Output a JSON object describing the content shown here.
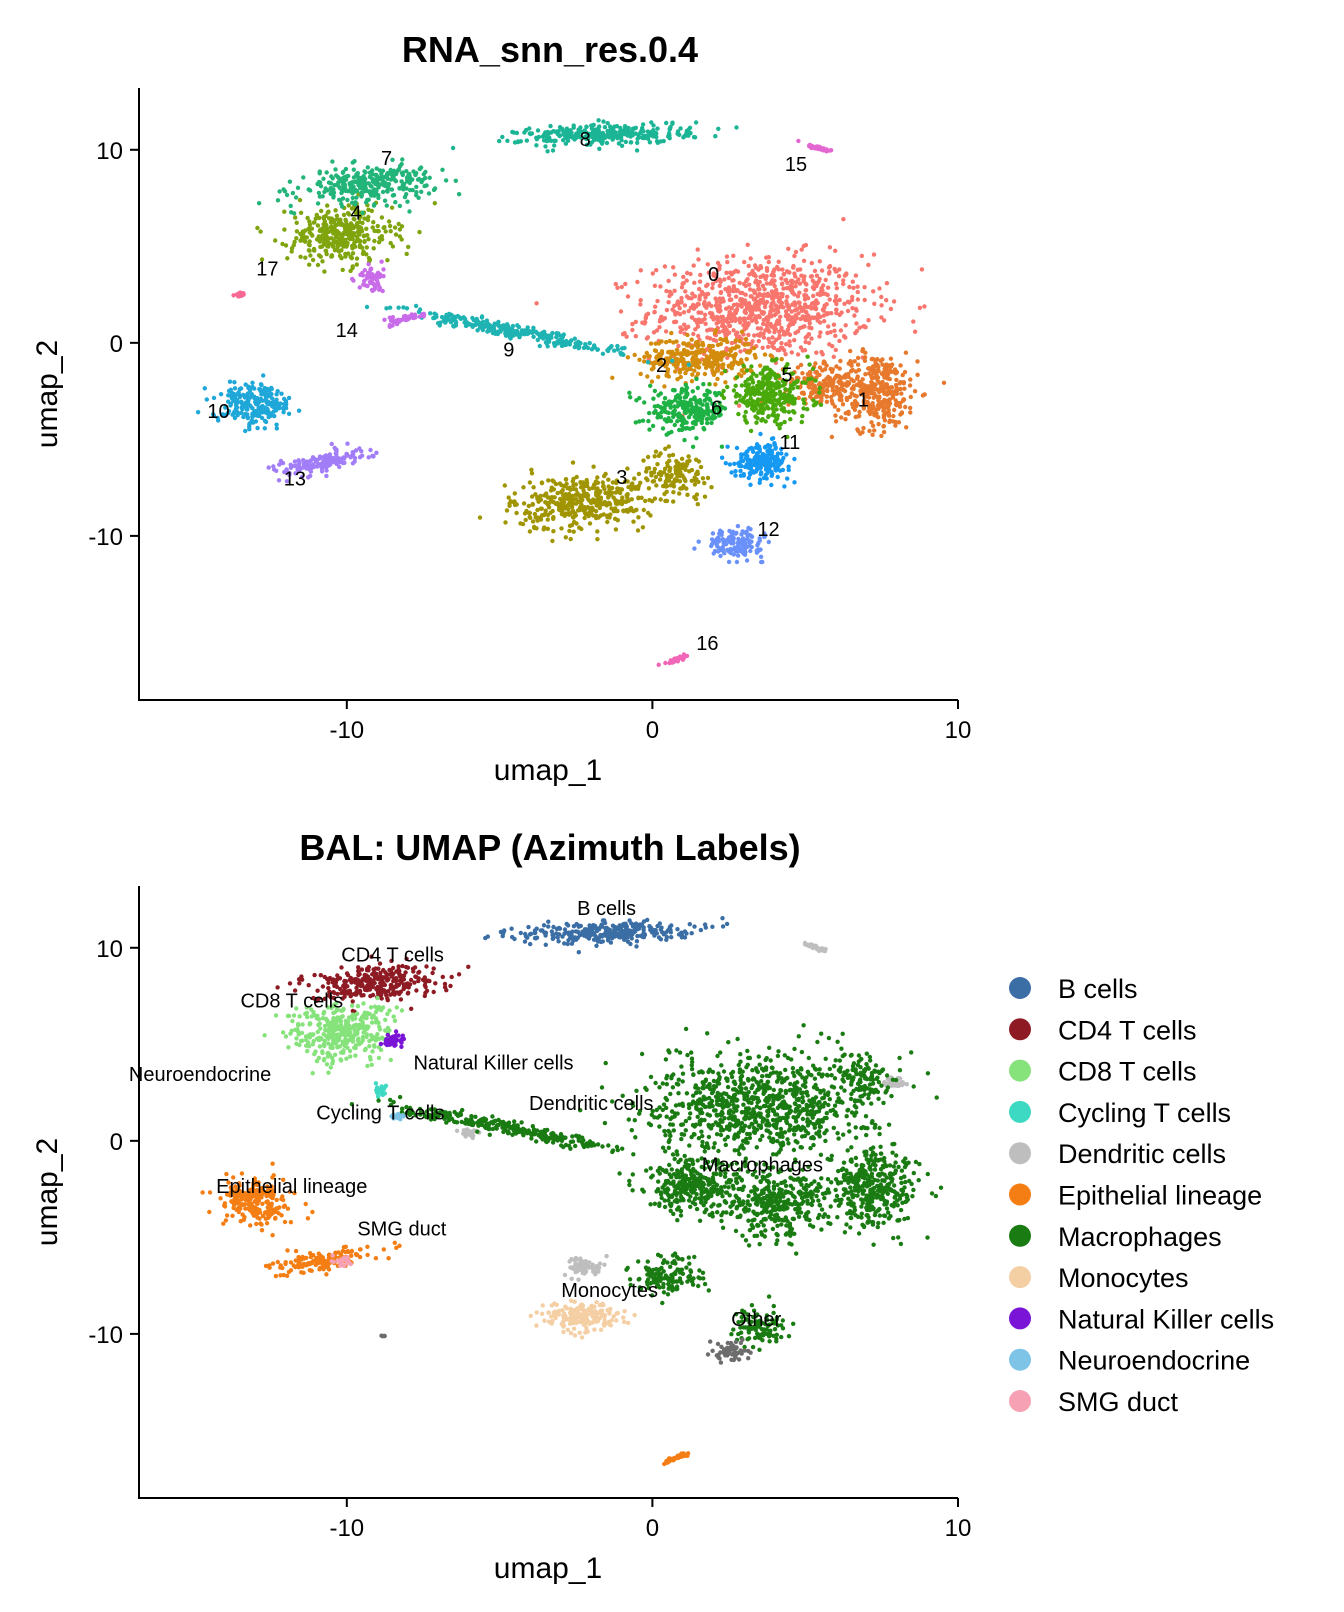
{
  "chart_data": [
    {
      "type": "scatter",
      "title": "RNA_snn_res.0.4",
      "xlabel": "umap_1",
      "ylabel": "umap_2",
      "xlim": [
        -16.8,
        10
      ],
      "ylim": [
        -18.5,
        13.2
      ],
      "xticks": [
        -10,
        0,
        10
      ],
      "yticks": [
        10,
        0,
        -10
      ],
      "legend": "none",
      "clusters": [
        {
          "name": "0",
          "color": "#F8766D",
          "label_xy": [
            2,
            3.2
          ],
          "blobs": [
            [
              3.5,
              1.8,
              3.6,
              2.6,
              0.05,
              900
            ]
          ]
        },
        {
          "name": "1",
          "color": "#E7792D",
          "label_xy": [
            6.9,
            -3.3
          ],
          "blobs": [
            [
              7.3,
              -2.5,
              1.4,
              2.0,
              0,
              350
            ],
            [
              5.5,
              -2.1,
              1.2,
              0.9,
              0,
              150
            ]
          ]
        },
        {
          "name": "2",
          "color": "#D38C0C",
          "label_xy": [
            0.3,
            -1.5
          ],
          "blobs": [
            [
              1.5,
              -0.8,
              1.9,
              1.1,
              0,
              300
            ]
          ]
        },
        {
          "name": "3",
          "color": "#A09500",
          "label_xy": [
            -1,
            -7.3
          ],
          "blobs": [
            [
              -2.3,
              -8.2,
              2.3,
              1.4,
              0.2,
              400
            ],
            [
              0.8,
              -6.8,
              1.2,
              1.2,
              0,
              120
            ]
          ]
        },
        {
          "name": "4",
          "color": "#7FA40D",
          "label_xy": [
            -9.7,
            6.4
          ],
          "blobs": [
            [
              -10.2,
              5.6,
              1.7,
              1.5,
              0,
              350
            ]
          ]
        },
        {
          "name": "5",
          "color": "#49A90A",
          "label_xy": [
            4.4,
            -2
          ],
          "blobs": [
            [
              3.8,
              -2.7,
              1.4,
              1.4,
              0,
              300
            ]
          ]
        },
        {
          "name": "6",
          "color": "#1EB144",
          "label_xy": [
            2.1,
            -3.7
          ],
          "blobs": [
            [
              1.2,
              -3.5,
              1.3,
              1.1,
              0,
              250
            ]
          ]
        },
        {
          "name": "7",
          "color": "#22B479",
          "label_xy": [
            -8.7,
            9.2
          ],
          "blobs": [
            [
              -9.3,
              8.2,
              2.2,
              0.9,
              0.15,
              300
            ]
          ]
        },
        {
          "name": "8",
          "color": "#1BB596",
          "label_xy": [
            -2.2,
            10.2
          ],
          "blobs": [
            [
              -1.5,
              10.8,
              2.8,
              0.55,
              0.06,
              300
            ]
          ]
        },
        {
          "name": "9",
          "color": "#1FB3B3",
          "label_xy": [
            -4.7,
            -0.7
          ],
          "blobs": [
            [
              -4.6,
              0.6,
              3.7,
              0.32,
              -0.3,
              280
            ]
          ]
        },
        {
          "name": "10",
          "color": "#1EA7D8",
          "label_xy": [
            -14.2,
            -3.9
          ],
          "blobs": [
            [
              -13,
              -3.2,
              1.2,
              1.1,
              -0.4,
              220
            ]
          ]
        },
        {
          "name": "11",
          "color": "#1599F2",
          "label_xy": [
            4.5,
            -5.5
          ],
          "blobs": [
            [
              3.6,
              -6.1,
              0.9,
              0.9,
              0,
              200
            ]
          ]
        },
        {
          "name": "12",
          "color": "#6A90FA",
          "label_xy": [
            3.8,
            -10
          ],
          "blobs": [
            [
              2.7,
              -10.4,
              0.9,
              0.7,
              0,
              150
            ]
          ]
        },
        {
          "name": "13",
          "color": "#A27DF8",
          "label_xy": [
            -11.7,
            -7.4
          ],
          "blobs": [
            [
              -10.8,
              -6.2,
              1.6,
              0.5,
              0.3,
              150
            ]
          ]
        },
        {
          "name": "14",
          "color": "#C96CE9",
          "label_xy": [
            -10,
            0.3
          ],
          "blobs": [
            [
              -9.2,
              3.3,
              0.4,
              0.7,
              0,
              60
            ],
            [
              -8,
              1.3,
              0.6,
              0.2,
              0.4,
              50
            ]
          ]
        },
        {
          "name": "15",
          "color": "#E466D0",
          "label_xy": [
            4.7,
            8.9
          ],
          "blobs": [
            [
              5.4,
              10.1,
              0.45,
              0.1,
              -0.5,
              40
            ]
          ]
        },
        {
          "name": "16",
          "color": "#F266B8",
          "label_xy": [
            1.8,
            -15.9
          ],
          "blobs": [
            [
              0.8,
              -16.4,
              0.4,
              0.1,
              0.6,
              40
            ]
          ]
        },
        {
          "name": "17",
          "color": "#F96893",
          "label_xy": [
            -12.6,
            3.5
          ],
          "blobs": [
            [
              -13.5,
              2.5,
              0.15,
              0.15,
              0,
              15
            ]
          ]
        }
      ],
      "labels": [
        "0",
        "1",
        "2",
        "3",
        "4",
        "5",
        "6",
        "7",
        "8",
        "9",
        "10",
        "11",
        "12",
        "13",
        "14",
        "15",
        "16",
        "17"
      ]
    },
    {
      "type": "scatter",
      "title": "BAL: UMAP (Azimuth Labels)",
      "xlabel": "umap_1",
      "ylabel": "umap_2",
      "xlim": [
        -16.8,
        10
      ],
      "ylim": [
        -18.5,
        13.2
      ],
      "xticks": [
        -10,
        0,
        10
      ],
      "yticks": [
        10,
        0,
        -10
      ],
      "legend": "right",
      "clusters": [
        {
          "name": "B cells",
          "color": "#3A6EA5",
          "label_xy": [
            -1.5,
            11.7
          ],
          "blobs": [
            [
              -1.5,
              10.8,
              2.8,
              0.55,
              0.06,
              300
            ]
          ]
        },
        {
          "name": "CD4 T cells",
          "color": "#8E1B24",
          "label_xy": [
            -8.5,
            9.3
          ],
          "blobs": [
            [
              -9.2,
              8.2,
              2.2,
              0.9,
              0.15,
              300
            ]
          ]
        },
        {
          "name": "CD8 T cells",
          "color": "#86E37C",
          "label_xy": [
            -11.8,
            6.9
          ],
          "blobs": [
            [
              -10.2,
              5.6,
              1.7,
              1.5,
              0,
              350
            ]
          ]
        },
        {
          "name": "Cycling T cells",
          "color": "#3ED9C3",
          "label_xy": [
            -8.9,
            1.1
          ],
          "blobs": [
            [
              -8.9,
              2.6,
              0.2,
              0.3,
              0,
              25
            ]
          ]
        },
        {
          "name": "Dendritic cells",
          "color": "#BEBEBE",
          "label_xy": [
            -2,
            1.6
          ],
          "blobs": [
            [
              5.4,
              10,
              0.45,
              0.1,
              -0.5,
              40
            ],
            [
              8,
              3,
              0.4,
              0.3,
              0,
              40
            ],
            [
              -2.2,
              -6.5,
              0.6,
              0.5,
              0,
              60
            ],
            [
              -6,
              0.4,
              0.4,
              0.25,
              -0.3,
              30
            ]
          ]
        },
        {
          "name": "Epithelial lineage",
          "color": "#F47E13",
          "label_xy": [
            -11.8,
            -2.7
          ],
          "blobs": [
            [
              -13,
              -3.2,
              1.2,
              1.1,
              -0.4,
              220
            ],
            [
              -10.8,
              -6.2,
              1.6,
              0.5,
              0.3,
              150
            ],
            [
              0.8,
              -16.4,
              0.4,
              0.1,
              0.6,
              40
            ]
          ]
        },
        {
          "name": "Macrophages",
          "color": "#1A7B12",
          "label_xy": [
            3.6,
            -1.6
          ],
          "blobs": [
            [
              3.5,
              1.8,
              3.6,
              2.6,
              0.05,
              900
            ],
            [
              7.3,
              -2.5,
              1.4,
              2.0,
              0,
              350
            ],
            [
              4,
              -3.2,
              1.8,
              1.8,
              0,
              350
            ],
            [
              1.3,
              -2.4,
              1.5,
              1.4,
              0,
              300
            ],
            [
              -4.6,
              0.6,
              3.7,
              0.32,
              -0.3,
              280
            ],
            [
              6.8,
              3.4,
              1.0,
              1.2,
              0.4,
              110
            ],
            [
              3.5,
              -9.7,
              0.8,
              1.0,
              0,
              100
            ],
            [
              0.5,
              -7,
              1.2,
              1.0,
              0,
              140
            ]
          ]
        },
        {
          "name": "Monocytes",
          "color": "#F5CFA4",
          "label_xy": [
            -1.4,
            -8.1
          ],
          "blobs": [
            [
              -2.3,
              -9.1,
              1.2,
              0.7,
              0,
              200
            ]
          ]
        },
        {
          "name": "Natural Killer cells",
          "color": "#7A14D6",
          "label_xy": [
            -5.2,
            3.7
          ],
          "blobs": [
            [
              -8.5,
              5.2,
              0.35,
              0.35,
              0,
              50
            ]
          ]
        },
        {
          "name": "Neuroendocrine",
          "color": "#7DC4E6",
          "label_xy": [
            -14.8,
            3.1
          ],
          "blobs": [
            [
              -8.3,
              1.3,
              0.3,
              0.15,
              0.4,
              20
            ]
          ]
        },
        {
          "name": "SMG duct",
          "color": "#F6A1B4",
          "label_xy": [
            -8.2,
            -4.9
          ],
          "blobs": [
            [
              -10.1,
              -6.3,
              0.3,
              0.3,
              0,
              20
            ]
          ]
        },
        {
          "name": "Other",
          "color": "#6D6D6D",
          "label_xy": [
            3.4,
            -9.6
          ],
          "blobs": [
            [
              2.6,
              -10.9,
              0.5,
              0.5,
              0,
              70
            ],
            [
              -8.8,
              -10.1,
              0.1,
              0.05,
              0,
              5
            ]
          ]
        }
      ],
      "labels": [
        "B cells",
        "CD4 T cells",
        "CD8 T cells",
        "Natural Killer cells",
        "Neuroendocrine",
        "Cycling T cells",
        "Dendritic cells",
        "Macrophages",
        "Epithelial lineage",
        "SMG duct",
        "Monocytes",
        "Other"
      ],
      "legend_entries": [
        {
          "label": "B cells",
          "color": "#3A6EA5"
        },
        {
          "label": "CD4 T cells",
          "color": "#8E1B24"
        },
        {
          "label": "CD8 T cells",
          "color": "#86E37C"
        },
        {
          "label": "Cycling T cells",
          "color": "#3ED9C3"
        },
        {
          "label": "Dendritic cells",
          "color": "#BEBEBE"
        },
        {
          "label": "Epithelial lineage",
          "color": "#F47E13"
        },
        {
          "label": "Macrophages",
          "color": "#1A7B12"
        },
        {
          "label": "Monocytes",
          "color": "#F5CFA4"
        },
        {
          "label": "Natural Killer cells",
          "color": "#7A14D6"
        },
        {
          "label": "Neuroendocrine",
          "color": "#7DC4E6"
        },
        {
          "label": "SMG duct",
          "color": "#F6A1B4"
        }
      ]
    }
  ]
}
